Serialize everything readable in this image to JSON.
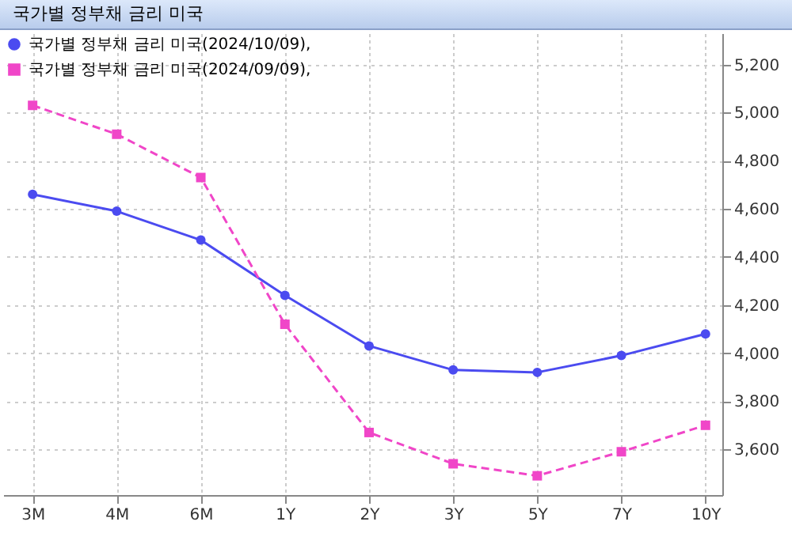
{
  "chart_data": {
    "type": "line",
    "title": "국가별 정부채 금리 미국",
    "categories": [
      "3M",
      "4M",
      "6M",
      "1Y",
      "2Y",
      "3Y",
      "5Y",
      "7Y",
      "10Y"
    ],
    "ylim": [
      3410,
      5330
    ],
    "yticks": [
      {
        "value": 3600,
        "label": "3,600"
      },
      {
        "value": 3800,
        "label": "3,800"
      },
      {
        "value": 4000,
        "label": "4,000"
      },
      {
        "value": 4200,
        "label": "4,200"
      },
      {
        "value": 4400,
        "label": "4,400"
      },
      {
        "value": 4600,
        "label": "4,600"
      },
      {
        "value": 4800,
        "label": "4,800"
      },
      {
        "value": 5000,
        "label": "5,000"
      },
      {
        "value": 5200,
        "label": "5,200"
      }
    ],
    "series": [
      {
        "name": "국가별 정부채 금리 미국(2024/10/09),",
        "color": "#4b4bf0",
        "marker": "circle",
        "line_style": "solid",
        "values": [
          4660,
          4590,
          4470,
          4240,
          4030,
          3930,
          3920,
          3990,
          4080
        ]
      },
      {
        "name": "국가별 정부채 금리 미국(2024/09/09),",
        "color": "#f046c8",
        "marker": "square",
        "line_style": "dashed",
        "values": [
          5030,
          4910,
          4730,
          4120,
          3670,
          3540,
          3490,
          3590,
          3700
        ]
      }
    ],
    "grid": true,
    "legend": "top left"
  }
}
